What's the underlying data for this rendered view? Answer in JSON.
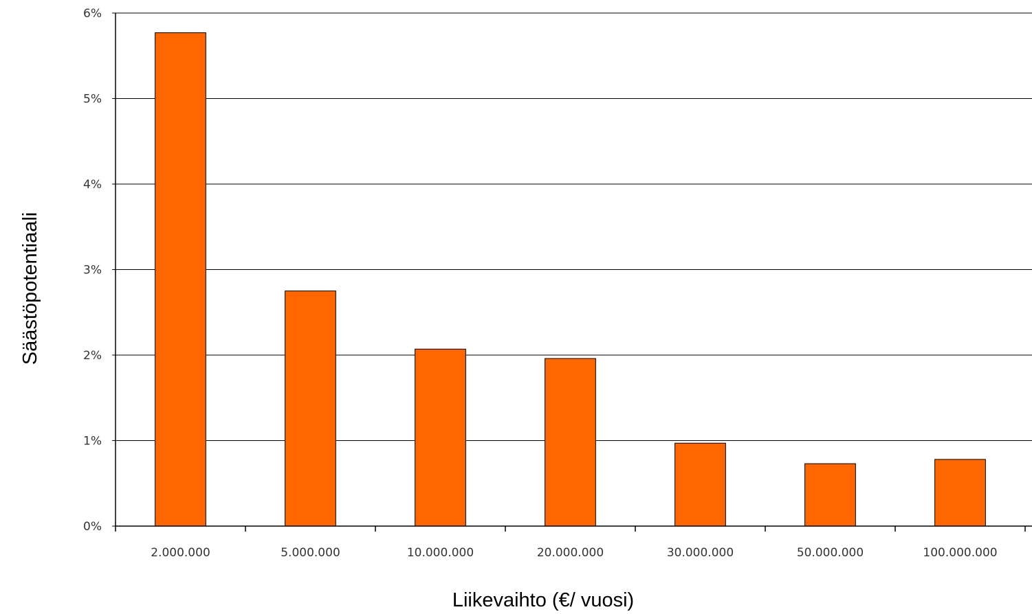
{
  "chart_data": {
    "type": "bar",
    "title": "",
    "xlabel": "Liikevaihto (€/ vuosi)",
    "ylabel": "Säästöpotentiaali",
    "categories": [
      "2.000.000",
      "5.000.000",
      "10.000.000",
      "20.000.000",
      "30.000.000",
      "50.000.000",
      "100.000.000"
    ],
    "values": [
      5.77,
      2.75,
      2.07,
      1.96,
      0.97,
      0.73,
      0.78
    ],
    "ylim": [
      0,
      6
    ],
    "yticks": [
      "0%",
      "1%",
      "2%",
      "3%",
      "4%",
      "5%",
      "6%"
    ],
    "grid": true,
    "legend": "none",
    "colors": {
      "bar": "#ff6600",
      "bar_edge": "#000000",
      "grid": "#000000"
    }
  }
}
